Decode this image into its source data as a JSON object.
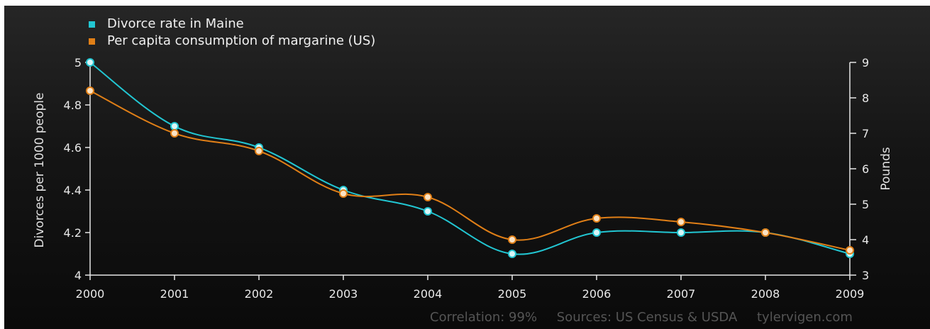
{
  "chart_data": {
    "type": "line",
    "x": [
      2000,
      2001,
      2002,
      2003,
      2004,
      2005,
      2006,
      2007,
      2008,
      2009
    ],
    "x_tick_labels": [
      "2000",
      "2001",
      "2002",
      "2003",
      "2004",
      "2005",
      "2006",
      "2007",
      "2008",
      "2009"
    ],
    "series": [
      {
        "name": "Divorce rate in Maine",
        "axis": "left",
        "color": "#22c6d2",
        "values": [
          5.0,
          4.7,
          4.6,
          4.4,
          4.3,
          4.1,
          4.2,
          4.2,
          4.2,
          4.1
        ]
      },
      {
        "name": "Per capita consumption of margarine (US)",
        "axis": "right",
        "color": "#e07f17",
        "values": [
          8.2,
          7.0,
          6.5,
          5.3,
          5.2,
          4.0,
          4.6,
          4.5,
          4.2,
          3.7
        ]
      }
    ],
    "ylabel_left": "Divorces per 1000 people",
    "ylim_left": [
      4,
      5
    ],
    "yticks_left": [
      "4",
      "4.2",
      "4.4",
      "4.6",
      "4.8",
      "5"
    ],
    "ylabel_right": "Pounds",
    "ylim_right": [
      3,
      9
    ],
    "yticks_right": [
      "3",
      "4",
      "5",
      "6",
      "7",
      "8",
      "9"
    ],
    "legend_position": "top-left",
    "grid": false
  },
  "footer": {
    "correlation": "Correlation: 99%",
    "sources": "Sources: US Census & USDA",
    "site": "tylervigen.com"
  }
}
